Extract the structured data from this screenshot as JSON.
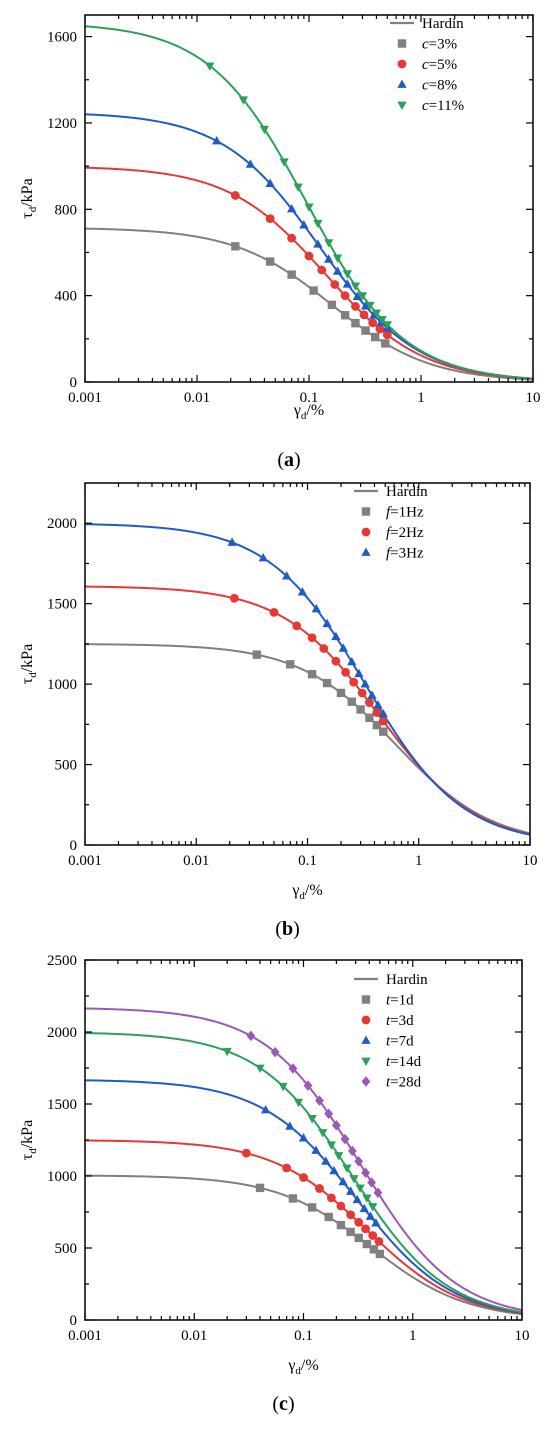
{
  "figure": {
    "panels": [
      {
        "label_open": "(",
        "label_letter": "a",
        "label_close": ")"
      },
      {
        "label_open": "(",
        "label_letter": "b",
        "label_close": ")"
      },
      {
        "label_open": "(",
        "label_letter": "c",
        "label_close": ")"
      }
    ]
  },
  "chart_data": [
    {
      "type": "line",
      "panel": "a",
      "xscale": "log",
      "xlim": [
        0.001,
        10
      ],
      "ylim": [
        0,
        1700
      ],
      "xticks": [
        "0.001",
        "0.01",
        "0.1",
        "1",
        "10"
      ],
      "yticks": [
        "0",
        "400",
        "800",
        "1200",
        "1600"
      ],
      "xlabel": {
        "main": "γ",
        "sub": "d",
        "rest": "/%"
      },
      "ylabel": {
        "main": "τ",
        "sub": "d",
        "rest": "/kPa"
      },
      "legend_position": "top-right",
      "curve_label": "Hardin",
      "series": [
        {
          "var": "c",
          "value_text": "=3%",
          "color": "#808080",
          "marker": "square",
          "tau_max": 715,
          "gamma_ref": 0.16,
          "points_x": [
            0.022,
            0.045,
            0.07,
            0.11,
            0.16,
            0.21,
            0.26,
            0.32,
            0.39,
            0.48
          ]
        },
        {
          "var": "c",
          "value_text": "=5%",
          "color": "#e53935",
          "marker": "circle",
          "tau_max": 1000,
          "gamma_ref": 0.14,
          "points_x": [
            0.022,
            0.045,
            0.07,
            0.1,
            0.13,
            0.17,
            0.21,
            0.26,
            0.31,
            0.37,
            0.43,
            0.5
          ]
        },
        {
          "var": "c",
          "value_text": "=8%",
          "color": "#1e5bc6",
          "marker": "triangle-up",
          "tau_max": 1250,
          "gamma_ref": 0.125,
          "points_x": [
            0.015,
            0.03,
            0.045,
            0.07,
            0.09,
            0.12,
            0.15,
            0.18,
            0.22,
            0.27,
            0.32,
            0.38,
            0.44,
            0.5
          ]
        },
        {
          "var": "c",
          "value_text": "=11%",
          "color": "#2ca05a",
          "marker": "triangle-down",
          "tau_max": 1665,
          "gamma_ref": 0.095,
          "points_x": [
            0.013,
            0.026,
            0.04,
            0.06,
            0.08,
            0.1,
            0.12,
            0.15,
            0.18,
            0.22,
            0.26,
            0.3,
            0.35,
            0.4,
            0.45,
            0.5
          ]
        }
      ]
    },
    {
      "type": "line",
      "panel": "b",
      "xscale": "log",
      "xlim": [
        0.001,
        10
      ],
      "ylim": [
        0,
        2250
      ],
      "xticks": [
        "0.001",
        "0.01",
        "0.1",
        "1",
        "10"
      ],
      "yticks": [
        "0",
        "500",
        "1000",
        "1500",
        "2000"
      ],
      "xlabel": {
        "main": "γ",
        "sub": "d",
        "rest": "/%"
      },
      "ylabel": {
        "main": "τ",
        "sub": "d",
        "rest": "/kPa"
      },
      "legend_position": "top-right",
      "curve_label": "Hardin",
      "series": [
        {
          "var": "f",
          "value_text": "=1Hz",
          "color": "#808080",
          "marker": "square",
          "tau_max": 1250,
          "gamma_ref": 0.62,
          "points_x": [
            0.035,
            0.07,
            0.11,
            0.15,
            0.2,
            0.25,
            0.3,
            0.36,
            0.42,
            0.48
          ]
        },
        {
          "var": "f",
          "value_text": "=2Hz",
          "color": "#e53935",
          "marker": "circle",
          "tau_max": 1610,
          "gamma_ref": 0.44,
          "points_x": [
            0.022,
            0.05,
            0.08,
            0.11,
            0.14,
            0.18,
            0.22,
            0.26,
            0.31,
            0.36,
            0.42,
            0.48
          ]
        },
        {
          "var": "f",
          "value_text": "=3Hz",
          "color": "#1e5bc6",
          "marker": "triangle-up",
          "tau_max": 2000,
          "gamma_ref": 0.33,
          "points_x": [
            0.021,
            0.04,
            0.065,
            0.09,
            0.12,
            0.15,
            0.18,
            0.21,
            0.25,
            0.29,
            0.33,
            0.38,
            0.43,
            0.48
          ]
        }
      ]
    },
    {
      "type": "line",
      "panel": "c",
      "xscale": "log",
      "xlim": [
        0.001,
        10
      ],
      "ylim": [
        0,
        2500
      ],
      "xticks": [
        "0.001",
        "0.01",
        "0.1",
        "1",
        "10"
      ],
      "yticks": [
        "0",
        "500",
        "1000",
        "1500",
        "2000",
        "2500"
      ],
      "xlabel": {
        "main": "γ",
        "sub": "d",
        "rest": "/%"
      },
      "ylabel": {
        "main": "τ",
        "sub": "d",
        "rest": "/kPa"
      },
      "legend_position": "top-right",
      "curve_label": "Hardin",
      "series": [
        {
          "var": "t",
          "value_text": "=1d",
          "color": "#808080",
          "marker": "square",
          "tau_max": 1005,
          "gamma_ref": 0.42,
          "points_x": [
            0.04,
            0.08,
            0.12,
            0.17,
            0.22,
            0.27,
            0.32,
            0.38,
            0.44,
            0.5
          ]
        },
        {
          "var": "t",
          "value_text": "=3d",
          "color": "#e53935",
          "marker": "circle",
          "tau_max": 1250,
          "gamma_ref": 0.38,
          "points_x": [
            0.03,
            0.07,
            0.1,
            0.14,
            0.18,
            0.22,
            0.27,
            0.32,
            0.37,
            0.43,
            0.49
          ]
        },
        {
          "var": "t",
          "value_text": "=7d",
          "color": "#1e5bc6",
          "marker": "triangle-up",
          "tau_max": 1670,
          "gamma_ref": 0.31,
          "points_x": [
            0.045,
            0.075,
            0.1,
            0.13,
            0.16,
            0.19,
            0.23,
            0.27,
            0.31,
            0.36,
            0.41,
            0.46
          ]
        },
        {
          "var": "t",
          "value_text": "=14d",
          "color": "#2ca05a",
          "marker": "triangle-down",
          "tau_max": 2000,
          "gamma_ref": 0.28,
          "points_x": [
            0.02,
            0.04,
            0.065,
            0.09,
            0.12,
            0.15,
            0.18,
            0.21,
            0.25,
            0.29,
            0.33,
            0.38,
            0.43
          ]
        },
        {
          "var": "t",
          "value_text": "=28d",
          "color": "#9b59b6",
          "marker": "diamond",
          "tau_max": 2170,
          "gamma_ref": 0.33,
          "points_x": [
            0.033,
            0.055,
            0.08,
            0.11,
            0.14,
            0.17,
            0.2,
            0.24,
            0.28,
            0.32,
            0.37,
            0.42,
            0.48
          ]
        }
      ]
    }
  ]
}
